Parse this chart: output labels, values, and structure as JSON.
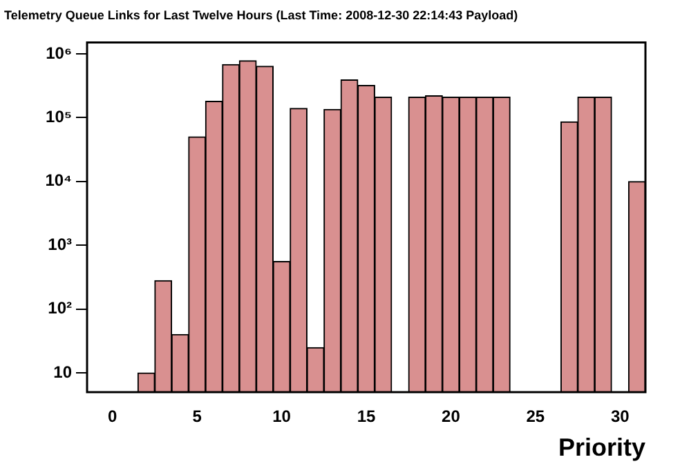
{
  "chart_data": {
    "type": "histogram",
    "title": "Telemetry Queue Links for Last Twelve Hours (Last Time: 2008-12-30 22:14:43 Payload)",
    "xlabel": "Priority",
    "bins": [
      -1.5,
      -0.5,
      0.5,
      1.5,
      2.5,
      3.5,
      4.5,
      5.5,
      6.5,
      7.5,
      8.5,
      9.5,
      10.5,
      11.5,
      12.5,
      13.5,
      14.5,
      15.5,
      16.5,
      17.5,
      18.5,
      19.5,
      20.5,
      21.5,
      22.5,
      23.5,
      24.5,
      25.5,
      26.5,
      27.5,
      28.5,
      29.5,
      30.5,
      31.5
    ],
    "values": [
      null,
      null,
      null,
      10,
      280,
      40,
      50000,
      180000,
      680000,
      780000,
      640000,
      560,
      140000,
      25,
      135000,
      390000,
      320000,
      210000,
      null,
      210000,
      220000,
      210000,
      210000,
      210000,
      210000,
      null,
      null,
      null,
      86000,
      210000,
      210000,
      null,
      10000
    ],
    "color": "#d99090",
    "log": "y",
    "grid": false,
    "legend": false,
    "xlim": [
      -1.5,
      31.5
    ],
    "xticks": [
      0,
      5,
      10,
      15,
      20,
      25,
      30
    ],
    "ylim": [
      5,
      1500000
    ],
    "yticks": [
      {
        "value": 10,
        "label": "10"
      },
      {
        "value": 100,
        "label": "10²"
      },
      {
        "value": 1000,
        "label": "10³"
      },
      {
        "value": 10000,
        "label": "10⁴"
      },
      {
        "value": 100000,
        "label": "10⁵"
      },
      {
        "value": 1000000,
        "label": "10⁶"
      }
    ]
  }
}
